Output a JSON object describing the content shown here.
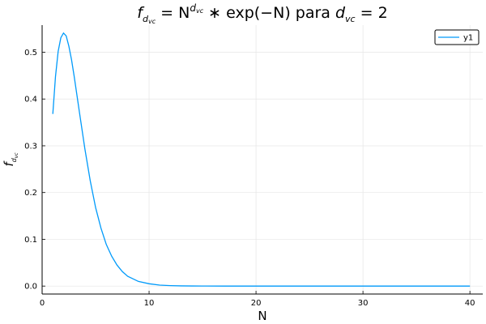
{
  "chart_data": {
    "type": "line",
    "title": {
      "f": "f",
      "f_sub": "d",
      "f_sub_sub": "vc",
      "eq": " = N",
      "exp_sup": "d",
      "exp_sup_sub": "vc",
      "rest": " ∗ exp(−N) para ",
      "d": "d",
      "d_sub": "vc",
      "tail": " = 2"
    },
    "xlabel": "N",
    "ylabel": {
      "f": "f",
      "sub": "d",
      "subsub": "vc"
    },
    "xlim": [
      0,
      41.2
    ],
    "ylim": [
      -0.017,
      0.558
    ],
    "x_ticks": [
      0,
      10,
      20,
      30,
      40
    ],
    "y_ticks": [
      0.0,
      0.1,
      0.2,
      0.3,
      0.4,
      0.5
    ],
    "y_tick_labels": [
      "0.0",
      "0.1",
      "0.2",
      "0.3",
      "0.4",
      "0.5"
    ],
    "grid": true,
    "legend_position": "top-right",
    "series": [
      {
        "name": "y1",
        "color": "#009AFA",
        "x": [
          1,
          1.25,
          1.5,
          1.75,
          2,
          2.25,
          2.5,
          2.75,
          3,
          3.5,
          4,
          4.5,
          5,
          5.5,
          6,
          6.5,
          7,
          7.5,
          8,
          9,
          10,
          11,
          12,
          13,
          14,
          15,
          17,
          20,
          25,
          30,
          35,
          40
        ],
        "y": [
          0.368,
          0.448,
          0.502,
          0.531,
          0.541,
          0.535,
          0.513,
          0.484,
          0.448,
          0.37,
          0.293,
          0.225,
          0.168,
          0.124,
          0.089,
          0.064,
          0.045,
          0.031,
          0.021,
          0.01,
          0.005,
          0.002,
          0.001,
          0.0004,
          0.0002,
          0.0001,
          0.0,
          0.0,
          0.0,
          0.0,
          0.0,
          0.0
        ]
      }
    ]
  }
}
